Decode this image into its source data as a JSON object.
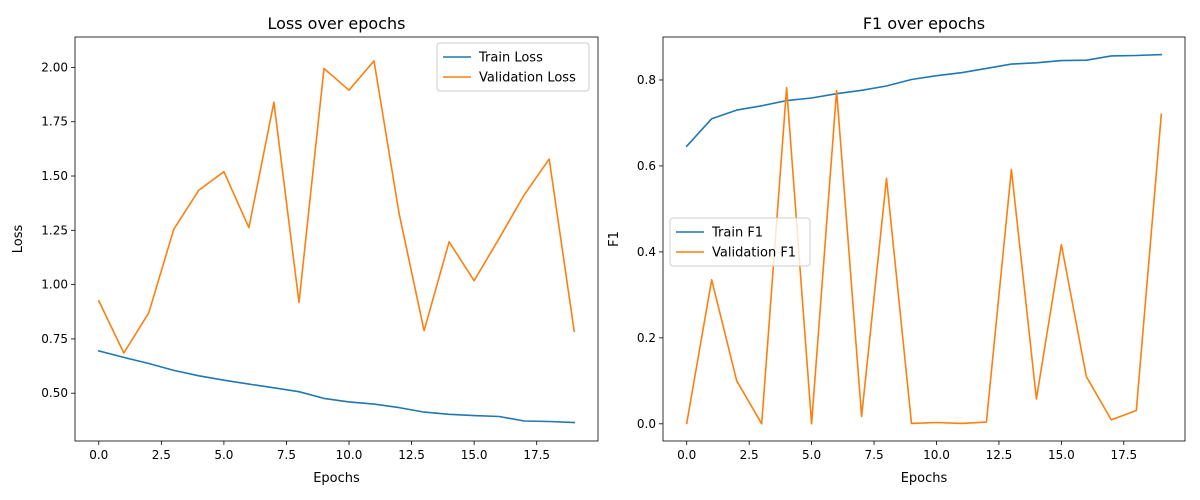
{
  "colors": {
    "train": "#1f77b4",
    "validation": "#ff7f0e"
  },
  "chart_data": [
    {
      "type": "line",
      "title": "Loss over epochs",
      "xlabel": "Epochs",
      "ylabel": "Loss",
      "xlim": [
        -0.95,
        19.95
      ],
      "ylim": [
        0.28,
        2.14
      ],
      "xticks": [
        0,
        2.5,
        5,
        7.5,
        10,
        12.5,
        15,
        17.5
      ],
      "xtick_labels": [
        "0.0",
        "2.5",
        "5.0",
        "7.5",
        "10.0",
        "12.5",
        "15.0",
        "17.5"
      ],
      "yticks": [
        0.5,
        0.75,
        1.0,
        1.25,
        1.5,
        1.75,
        2.0
      ],
      "ytick_labels": [
        "0.50",
        "0.75",
        "1.00",
        "1.25",
        "1.50",
        "1.75",
        "2.00"
      ],
      "legend_position": "upper right",
      "x": [
        0,
        1,
        2,
        3,
        4,
        5,
        6,
        7,
        8,
        9,
        10,
        11,
        12,
        13,
        14,
        15,
        16,
        17,
        18,
        19
      ],
      "series": [
        {
          "name": "Train Loss",
          "color": "#1f77b4",
          "values": [
            0.695,
            0.665,
            0.637,
            0.605,
            0.58,
            0.56,
            0.542,
            0.525,
            0.507,
            0.476,
            0.46,
            0.45,
            0.434,
            0.413,
            0.403,
            0.397,
            0.393,
            0.372,
            0.37,
            0.365
          ]
        },
        {
          "name": "Validation Loss",
          "color": "#ff7f0e",
          "values": [
            0.925,
            0.685,
            0.87,
            1.255,
            1.435,
            1.52,
            1.262,
            1.84,
            0.918,
            1.995,
            1.895,
            2.03,
            1.327,
            0.788,
            1.197,
            1.018,
            1.213,
            1.413,
            1.578,
            0.785
          ]
        }
      ]
    },
    {
      "type": "line",
      "title": "F1 over epochs",
      "xlabel": "Epochs",
      "ylabel": "F1",
      "xlim": [
        -0.95,
        19.95
      ],
      "ylim": [
        -0.04,
        0.9
      ],
      "xticks": [
        0,
        2.5,
        5,
        7.5,
        10,
        12.5,
        15,
        17.5
      ],
      "xtick_labels": [
        "0.0",
        "2.5",
        "5.0",
        "7.5",
        "10.0",
        "12.5",
        "15.0",
        "17.5"
      ],
      "yticks": [
        0.0,
        0.2,
        0.4,
        0.6,
        0.8
      ],
      "ytick_labels": [
        "0.0",
        "0.2",
        "0.4",
        "0.6",
        "0.8"
      ],
      "legend_position": "center left",
      "x": [
        0,
        1,
        2,
        3,
        4,
        5,
        6,
        7,
        8,
        9,
        10,
        11,
        12,
        13,
        14,
        15,
        16,
        17,
        18,
        19
      ],
      "series": [
        {
          "name": "Train F1",
          "color": "#1f77b4",
          "values": [
            0.646,
            0.71,
            0.73,
            0.74,
            0.752,
            0.758,
            0.768,
            0.776,
            0.786,
            0.801,
            0.81,
            0.817,
            0.827,
            0.837,
            0.84,
            0.845,
            0.846,
            0.856,
            0.857,
            0.859
          ]
        },
        {
          "name": "Validation F1",
          "color": "#ff7f0e",
          "values": [
            0.001,
            0.335,
            0.1,
            0.0,
            0.782,
            0.0,
            0.775,
            0.017,
            0.571,
            0.001,
            0.003,
            0.001,
            0.004,
            0.592,
            0.058,
            0.417,
            0.11,
            0.009,
            0.031,
            0.72
          ]
        }
      ]
    }
  ]
}
